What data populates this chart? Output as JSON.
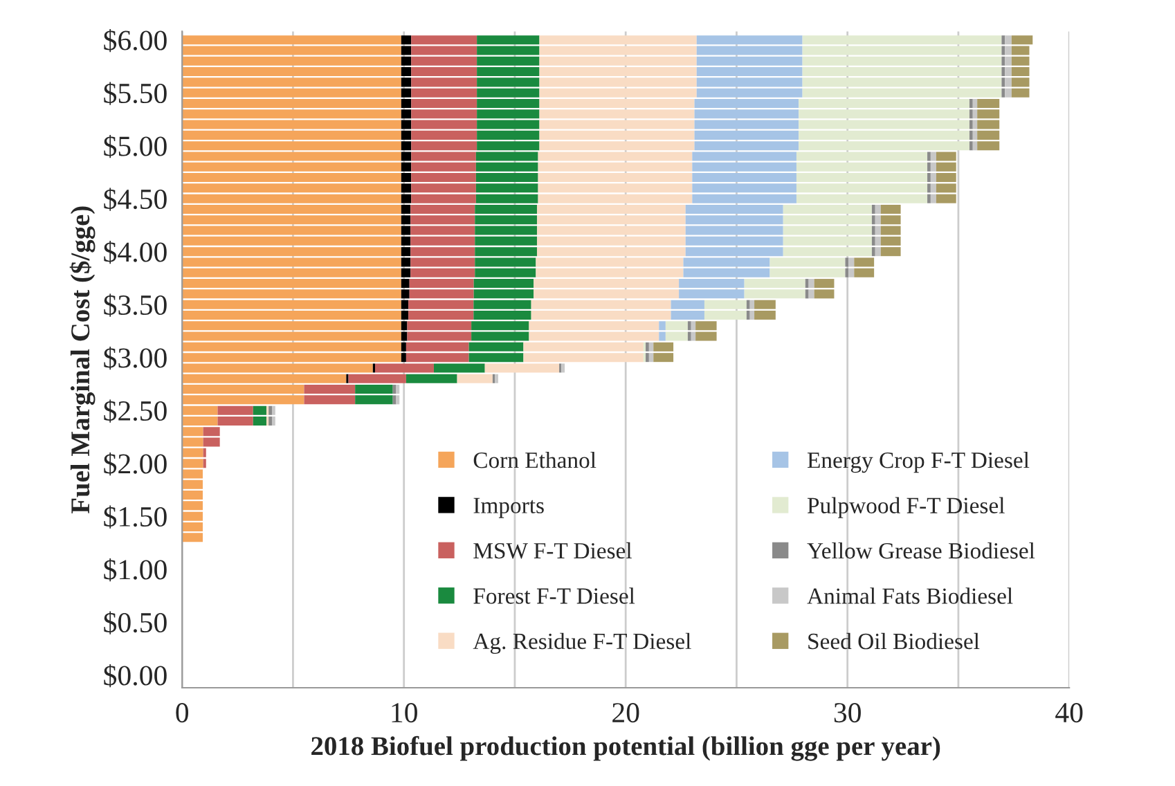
{
  "chart_data": {
    "type": "bar",
    "orientation": "horizontal",
    "stacked": true,
    "xlabel": "2018 Biofuel production potential (billion gge per year)",
    "ylabel": "Fuel Marginal Cost ($/gge)",
    "x": [
      6.0,
      5.9,
      5.8,
      5.7,
      5.6,
      5.5,
      5.4,
      5.3,
      5.2,
      5.1,
      5.0,
      4.9,
      4.8,
      4.7,
      4.6,
      4.5,
      4.4,
      4.3,
      4.2,
      4.1,
      4.0,
      3.9,
      3.8,
      3.7,
      3.6,
      3.5,
      3.4,
      3.3,
      3.2,
      3.1,
      3.0,
      2.9,
      2.8,
      2.7,
      2.6,
      2.5,
      2.4,
      2.3,
      2.2,
      2.1,
      2.0,
      1.9,
      1.8,
      1.7,
      1.6,
      1.5,
      1.4,
      1.3
    ],
    "xlim": [
      0,
      40
    ],
    "xticks": [
      0,
      {
        "value": 5,
        "label": null
      },
      10,
      {
        "value": 15,
        "label": null
      },
      20,
      {
        "value": 25,
        "label": null
      },
      30,
      {
        "value": 35,
        "label": null
      },
      40
    ],
    "ylim": [
      -0.12,
      6.08
    ],
    "yticks": [
      {
        "value": 0,
        "label": "$0.00"
      },
      {
        "value": 0.5,
        "label": "$0.50"
      },
      {
        "value": 1,
        "label": "$1.00"
      },
      {
        "value": 1.5,
        "label": "$1.50"
      },
      {
        "value": 2,
        "label": "$2.00"
      },
      {
        "value": 2.5,
        "label": "$2.50"
      },
      {
        "value": 3,
        "label": "$3.00"
      },
      {
        "value": 3.5,
        "label": "$3.50"
      },
      {
        "value": 4,
        "label": "$4.00"
      },
      {
        "value": 4.5,
        "label": "$4.50"
      },
      {
        "value": 5,
        "label": "$5.00"
      },
      {
        "value": 5.5,
        "label": "$5.50"
      },
      {
        "value": 6,
        "label": "$6.00"
      }
    ],
    "grid": "x",
    "legend": "bottom right",
    "series": [
      {
        "name": "Corn Ethanol",
        "color": "#f5a55a",
        "values": [
          9.88,
          9.88,
          9.88,
          9.88,
          9.88,
          9.88,
          9.88,
          9.88,
          9.88,
          9.88,
          9.88,
          9.88,
          9.88,
          9.88,
          9.88,
          9.88,
          9.88,
          9.88,
          9.88,
          9.88,
          9.88,
          9.88,
          9.88,
          9.88,
          9.88,
          9.88,
          9.88,
          9.88,
          9.88,
          9.88,
          9.88,
          8.6,
          7.4,
          5.5,
          5.5,
          1.6,
          1.6,
          0.95,
          0.95,
          0.95,
          0.95,
          0.93,
          0.93,
          0.93,
          0.93,
          0.93,
          0.93,
          0.93
        ]
      },
      {
        "name": "Imports",
        "color": "#000000",
        "values": [
          0.45,
          0.45,
          0.45,
          0.45,
          0.45,
          0.45,
          0.45,
          0.45,
          0.45,
          0.45,
          0.45,
          0.45,
          0.45,
          0.45,
          0.45,
          0.45,
          0.42,
          0.42,
          0.42,
          0.42,
          0.42,
          0.42,
          0.42,
          0.37,
          0.37,
          0.32,
          0.32,
          0.27,
          0.27,
          0.22,
          0.22,
          0.1,
          0.1,
          0,
          0,
          0,
          0,
          0,
          0,
          0,
          0,
          0,
          0,
          0,
          0,
          0,
          0,
          0
        ]
      },
      {
        "name": "MSW F-T Diesel",
        "color": "#c9615f",
        "values": [
          2.96,
          2.96,
          2.96,
          2.96,
          2.96,
          2.96,
          2.96,
          2.96,
          2.96,
          2.96,
          2.96,
          2.92,
          2.92,
          2.92,
          2.92,
          2.92,
          2.9,
          2.9,
          2.9,
          2.9,
          2.9,
          2.9,
          2.9,
          2.9,
          2.9,
          2.94,
          2.94,
          2.89,
          2.89,
          2.83,
          2.83,
          2.65,
          2.6,
          2.3,
          2.3,
          1.6,
          1.6,
          0.75,
          0.75,
          0.13,
          0.13,
          0,
          0,
          0,
          0,
          0,
          0,
          0
        ]
      },
      {
        "name": "Forest F-T Diesel",
        "color": "#1a8a3f",
        "values": [
          2.82,
          2.82,
          2.82,
          2.82,
          2.82,
          2.82,
          2.82,
          2.82,
          2.82,
          2.82,
          2.82,
          2.8,
          2.8,
          2.8,
          2.8,
          2.8,
          2.8,
          2.8,
          2.8,
          2.8,
          2.8,
          2.75,
          2.75,
          2.7,
          2.7,
          2.6,
          2.6,
          2.6,
          2.6,
          2.46,
          2.46,
          2.3,
          2.3,
          1.7,
          1.7,
          0.6,
          0.6,
          0,
          0,
          0,
          0,
          0,
          0,
          0,
          0,
          0,
          0,
          0
        ]
      },
      {
        "name": "Ag. Residue F-T Diesel",
        "color": "#f9dcc4",
        "values": [
          7.09,
          7.09,
          7.09,
          7.09,
          7.09,
          7.09,
          6.99,
          6.99,
          6.99,
          6.99,
          6.99,
          6.95,
          6.95,
          6.95,
          6.95,
          6.95,
          6.7,
          6.7,
          6.7,
          6.7,
          6.7,
          6.65,
          6.65,
          6.55,
          6.55,
          6.3,
          6.3,
          5.86,
          5.86,
          5.41,
          5.41,
          3.35,
          1.6,
          null,
          null,
          0.1,
          0.1,
          0,
          0,
          0,
          0,
          0,
          0,
          0,
          0,
          0,
          0,
          0
        ]
      },
      {
        "name": "Energy Crop F-T Diesel",
        "color": "#a6c4e6",
        "values": [
          4.77,
          4.77,
          4.77,
          4.77,
          4.77,
          4.77,
          4.7,
          4.7,
          4.7,
          4.7,
          4.7,
          4.7,
          4.7,
          4.7,
          4.7,
          4.7,
          4.4,
          4.4,
          4.4,
          4.4,
          4.4,
          3.9,
          3.9,
          2.95,
          2.95,
          1.51,
          1.51,
          0.3,
          0.3,
          0,
          0,
          0,
          0,
          0,
          0,
          0,
          0,
          0,
          0,
          0,
          0,
          0,
          0,
          0,
          0,
          0,
          0,
          0
        ]
      },
      {
        "name": "Pulpwood F-T Diesel",
        "color": "#e2ebd1",
        "values": [
          8.98,
          8.98,
          8.98,
          8.98,
          8.98,
          8.98,
          7.7,
          7.7,
          7.7,
          7.7,
          7.7,
          5.9,
          5.9,
          5.9,
          5.9,
          5.9,
          4.0,
          4.0,
          4.0,
          4.0,
          4.0,
          3.4,
          3.4,
          2.75,
          2.75,
          1.9,
          1.9,
          1.0,
          1.0,
          0.1,
          0.1,
          0,
          0,
          0,
          0,
          0,
          0,
          0,
          0,
          0,
          0,
          0,
          0,
          0,
          0,
          0,
          0,
          0
        ]
      },
      {
        "name": "Yellow Grease Biodiesel",
        "color": "#8a8a8a",
        "values": [
          0.15,
          0.15,
          0.15,
          0.15,
          0.15,
          0.15,
          0.15,
          0.15,
          0.15,
          0.15,
          0.15,
          0.15,
          0.15,
          0.15,
          0.15,
          0.15,
          0.15,
          0.15,
          0.15,
          0.15,
          0.15,
          0.15,
          0.15,
          0.15,
          0.15,
          0.15,
          0.15,
          0.15,
          0.15,
          0.15,
          0.15,
          0.1,
          0.1,
          0.15,
          0.15,
          0.15,
          0.15,
          0,
          0,
          0,
          0,
          0,
          0,
          0,
          0,
          0,
          0,
          0
        ]
      },
      {
        "name": "Animal Fats Biodiesel",
        "color": "#c8c8c8",
        "values": [
          0.3,
          0.3,
          0.3,
          0.3,
          0.3,
          0.3,
          0.2,
          0.2,
          0.2,
          0.2,
          0.2,
          0.25,
          0.25,
          0.25,
          0.25,
          0.25,
          0.25,
          0.25,
          0.25,
          0.25,
          0.25,
          0.25,
          0.25,
          0.25,
          0.25,
          0.2,
          0.2,
          0.2,
          0.2,
          0.2,
          0.2,
          0.15,
          0.15,
          0.15,
          0.15,
          0.15,
          0.15,
          0,
          0,
          0,
          0,
          0,
          0,
          0,
          0,
          0,
          0,
          0
        ]
      },
      {
        "name": "Seed Oil Biodiesel",
        "color": "#a89a62",
        "values": [
          0.95,
          0.8,
          0.8,
          0.8,
          0.8,
          0.8,
          1.0,
          1.0,
          1.0,
          1.0,
          1.0,
          0.9,
          0.9,
          0.9,
          0.9,
          0.9,
          0.9,
          0.9,
          0.9,
          0.9,
          0.9,
          0.9,
          0.9,
          0.9,
          0.9,
          0.96,
          0.96,
          0.95,
          0.95,
          0.9,
          0.9,
          0,
          0,
          0,
          0,
          0,
          0,
          0,
          0,
          0,
          0,
          0,
          0,
          0,
          0,
          0,
          0,
          0
        ]
      }
    ]
  }
}
